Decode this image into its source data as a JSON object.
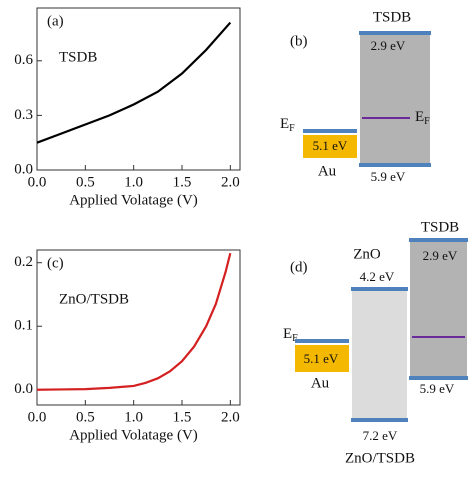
{
  "chart_data": [
    {
      "type": "line",
      "panel": "(a)",
      "annotation": "TSDB",
      "xlabel": "Applied Volatage (V)",
      "x": [
        0,
        0.25,
        0.5,
        0.75,
        1.0,
        1.25,
        1.5,
        1.75,
        2.0
      ],
      "series": [
        {
          "color": "#000000",
          "values": [
            0.15,
            0.2,
            0.25,
            0.3,
            0.36,
            0.43,
            0.53,
            0.66,
            0.81
          ]
        }
      ],
      "xlim": [
        0,
        2.1
      ],
      "ylim": [
        0,
        0.89
      ],
      "xticks": [
        {
          "value": 0,
          "label": "0.0"
        },
        0.5,
        {
          "value": 1,
          "label": "1.0"
        },
        1.5,
        {
          "value": 2,
          "label": "2.0"
        }
      ],
      "yticks": [
        {
          "value": 0,
          "label": "0.0"
        },
        0.3,
        0.6
      ]
    },
    {
      "type": "line",
      "panel": "(c)",
      "annotation": "ZnO/TSDB",
      "xlabel": "Applied Volatage (V)",
      "x": [
        0,
        0.25,
        0.5,
        0.75,
        1.0,
        1.125,
        1.25,
        1.375,
        1.5,
        1.625,
        1.75,
        1.85,
        1.95,
        2.0
      ],
      "series": [
        {
          "color": "#d42020",
          "values": [
            0,
            0.0005,
            0.001,
            0.003,
            0.006,
            0.011,
            0.018,
            0.029,
            0.045,
            0.068,
            0.1,
            0.135,
            0.185,
            0.215
          ]
        }
      ],
      "xlim": [
        0,
        2.1
      ],
      "ylim": [
        -0.024,
        0.22
      ],
      "xticks": [
        {
          "value": 0,
          "label": "0.0"
        },
        0.5,
        {
          "value": 1,
          "label": "1.0"
        },
        1.5,
        {
          "value": 2,
          "label": "2.0"
        }
      ],
      "yticks": [
        {
          "value": 0,
          "label": "0.0"
        },
        0.1,
        0.2
      ]
    }
  ],
  "diagram_b": {
    "panel": "(b)",
    "tsdb": "TSDB",
    "lumo": "2.9 eV",
    "homo": "5.9 eV",
    "au_level": "5.1 eV",
    "au": "Au",
    "ef_left": {
      "main": "E",
      "sub": "F"
    },
    "ef_right": {
      "main": "E",
      "sub": "F"
    }
  },
  "diagram_d": {
    "panel": "(d)",
    "zno": "ZnO",
    "zno_cb": "4.2 eV",
    "zno_vb": "7.2 eV",
    "tsdb": "TSDB",
    "lumo": "2.9 eV",
    "homo": "5.9 eV",
    "au_level": "5.1 eV",
    "au": "Au",
    "ef_left": {
      "main": "E",
      "sub": "F"
    },
    "caption": "ZnO/TSDB"
  }
}
